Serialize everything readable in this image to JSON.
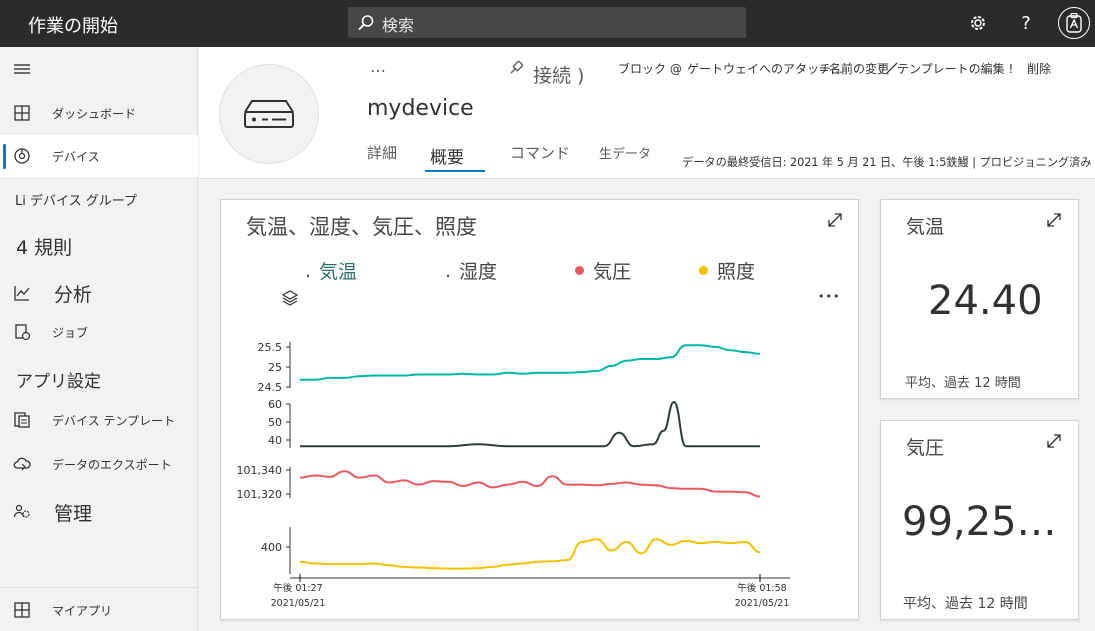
{
  "app": {
    "title": "作業の開始"
  },
  "search": {
    "placeholder": "検索"
  },
  "sidebar": {
    "items": [
      {
        "label": "ダッシュボード",
        "icon": "dashboard-icon"
      },
      {
        "label": "デバイス",
        "icon": "devices-icon"
      },
      {
        "label": "Li デバイス グループ"
      },
      {
        "label": "4 規則"
      },
      {
        "label": "分析",
        "icon": "analytics-icon"
      },
      {
        "label": "ジョブ",
        "icon": "jobs-icon"
      },
      {
        "label": "アプリ設定"
      },
      {
        "label": "デバイス テンプレート",
        "icon": "device-templates-icon"
      },
      {
        "label": "データのエクスポート",
        "icon": "data-export-icon"
      },
      {
        "label": "管理",
        "icon": "administration-icon"
      },
      {
        "label": "マイアプリ",
        "icon": "my-apps-icon"
      }
    ]
  },
  "device": {
    "name": "mydevice",
    "toolbar": {
      "more": "…",
      "connect": "接続 )",
      "block": "ブロック @",
      "attach_gateway": "ゲートウェイへのアタッチ…",
      "rename": "=名前の変更",
      "edit_template": "テンプレートの編集 !",
      "delete": "削除"
    },
    "tabs": [
      "詳細",
      "概要",
      "コマンド",
      "生データ"
    ],
    "active_tab": "概要",
    "status": "データの最終受信日: 2021 年 5 月 21 日、午後 1:5鉄鰻 | プロビジョニング済み"
  },
  "chart_card": {
    "title": "気温、湿度、気圧、照度",
    "legend": [
      {
        "prefix": ".",
        "label": "気温"
      },
      {
        "prefix": ".",
        "label": "湿度"
      },
      {
        "label": "気圧",
        "color": "#e8585c"
      },
      {
        "label": "照度",
        "color": "#f2c100"
      }
    ],
    "more": "•••"
  },
  "chart_data": {
    "type": "line",
    "x_start": {
      "time": "午後 01:27",
      "date": "2021/05/21"
    },
    "x_end": {
      "time": "午後 01:58",
      "date": "2021/05/21"
    },
    "series": [
      {
        "name": "気温",
        "color": "#00b7a8",
        "ticks": [
          "25.5",
          "25",
          "24.5"
        ],
        "ylim": [
          24.3,
          25.75
        ],
        "x": [
          0,
          1,
          2,
          3,
          4,
          5,
          6,
          7,
          8,
          9,
          10,
          11,
          12,
          13,
          14,
          15,
          16,
          17,
          18,
          19,
          20,
          21,
          22,
          23,
          24,
          25,
          26,
          27,
          28,
          29,
          30,
          31
        ],
        "values": [
          24.6,
          24.6,
          24.65,
          24.65,
          24.7,
          24.72,
          24.72,
          24.72,
          24.75,
          24.75,
          24.75,
          24.77,
          24.75,
          24.75,
          24.8,
          24.77,
          24.8,
          24.8,
          24.8,
          24.82,
          24.85,
          25.0,
          25.15,
          25.2,
          25.2,
          25.25,
          25.6,
          25.6,
          25.55,
          25.45,
          25.4,
          25.35
        ]
      },
      {
        "name": "湿度",
        "color": "#2f3b3b",
        "ticks": [
          "60",
          "50",
          "40"
        ],
        "ylim": [
          37,
          62
        ],
        "x": [
          0,
          2,
          4,
          6,
          8,
          10,
          12,
          14,
          16,
          18,
          19.5,
          20.5,
          21.5,
          22.5,
          23.8,
          24.5,
          25.2,
          26,
          27,
          28,
          29,
          30,
          31
        ],
        "values": [
          39,
          39,
          39,
          39,
          39,
          39,
          40,
          39,
          39,
          39,
          39,
          39,
          46,
          39,
          40,
          47,
          62,
          39,
          39,
          39,
          39,
          39,
          39
        ]
      },
      {
        "name": "気圧",
        "color": "#e8585c",
        "ticks": [
          "101,340",
          "101,320"
        ],
        "ylim": [
          101300,
          101350
        ],
        "x": [
          0,
          1,
          2,
          3,
          4,
          5,
          6,
          7,
          8,
          9,
          10,
          11,
          12,
          13,
          14,
          15,
          16,
          17,
          18,
          19,
          20,
          21,
          22,
          23,
          24,
          25,
          26,
          27,
          28,
          29,
          30,
          31
        ],
        "values": [
          101332,
          101335,
          101333,
          101341,
          101332,
          101335,
          101325,
          101328,
          101322,
          101327,
          101326,
          101320,
          101325,
          101318,
          101322,
          101326,
          101320,
          101334,
          101322,
          101322,
          101321,
          101323,
          101325,
          101322,
          101321,
          101317,
          101316,
          101316,
          101312,
          101312,
          101311,
          101305
        ]
      },
      {
        "name": "照度",
        "color": "#f2c100",
        "ticks": [
          "400"
        ],
        "ylim": [
          360,
          450
        ],
        "x": [
          0,
          1,
          2,
          3,
          4,
          5,
          6,
          7,
          8,
          9,
          10,
          11,
          12,
          13,
          14,
          15,
          16,
          17,
          18,
          19,
          20,
          21,
          22,
          23,
          24,
          25,
          26,
          27,
          28,
          29,
          30,
          31
        ],
        "values": [
          385,
          382,
          381,
          381,
          381,
          382,
          379,
          376,
          375,
          374,
          373,
          373,
          374,
          376,
          380,
          382,
          385,
          386,
          388,
          420,
          425,
          405,
          420,
          400,
          425,
          415,
          422,
          418,
          420,
          418,
          420,
          402
        ]
      }
    ]
  },
  "kpis": [
    {
      "title": "気温",
      "value": "24.40",
      "caption": "平均、過去 12 時間"
    },
    {
      "title": "気圧",
      "value": "99,25…",
      "caption": "平均、過去 12 時間"
    }
  ]
}
